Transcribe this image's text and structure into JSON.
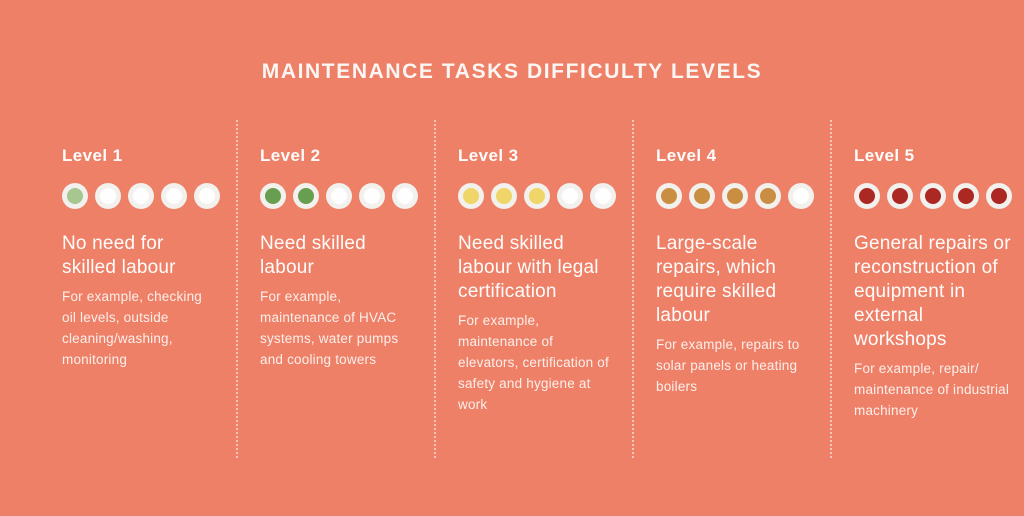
{
  "title": "MAINTENANCE TASKS DIFFICULTY LEVELS",
  "colors": {
    "background": "#EF8068",
    "title_text": "#FAF6F3",
    "heading_text": "#FDFCFB",
    "body_text": "#FBEFEA",
    "dot_ring": "#F2F1ED",
    "dot_empty": "#FEFEFE",
    "divider": "rgba(255,255,255,0.55)"
  },
  "levels": [
    {
      "label": "Level 1",
      "filled_dots": 1,
      "total_dots": 5,
      "dot_color": "#A7C791",
      "heading": "No need for skilled labour",
      "example": "For example, checking oil levels, outside cleaning/washing, monitoring"
    },
    {
      "label": "Level 2",
      "filled_dots": 2,
      "total_dots": 5,
      "dot_color": "#679E50",
      "heading": "Need skilled labour",
      "example": "For example, maintenance of HVAC systems, water pumps and cooling towers"
    },
    {
      "label": "Level 3",
      "filled_dots": 3,
      "total_dots": 5,
      "dot_color": "#F0D568",
      "heading": "Need skilled labour with legal certification",
      "example": "For example, maintenance of elevators, certification of safety and hygiene at work"
    },
    {
      "label": "Level 4",
      "filled_dots": 4,
      "total_dots": 5,
      "dot_color": "#C98E41",
      "heading": "Large-scale repairs, which require skilled labour",
      "example": "For example, repairs to solar panels or heating boilers"
    },
    {
      "label": "Level 5",
      "filled_dots": 5,
      "total_dots": 5,
      "dot_color": "#AC2823",
      "heading": "General repairs or reconstruction of equipment in external workshops",
      "example": "For example, repair/ maintenance of industrial machinery"
    }
  ]
}
